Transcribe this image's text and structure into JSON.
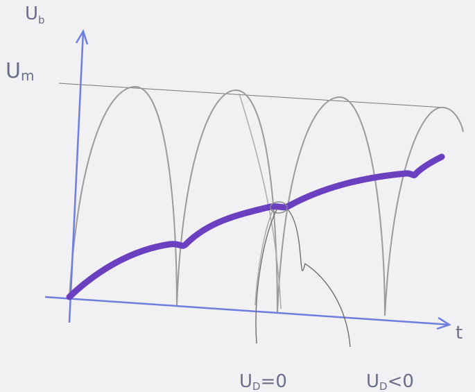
{
  "axes": {
    "y_label": {
      "main": "U",
      "sub": "b"
    },
    "x_label": "t"
  },
  "level_label": {
    "main": "U",
    "sub": "m"
  },
  "annotations": [
    {
      "main": "U",
      "sub": "D",
      "rest": "=0"
    },
    {
      "main": "U",
      "sub": "D",
      "rest": "<0"
    }
  ]
}
